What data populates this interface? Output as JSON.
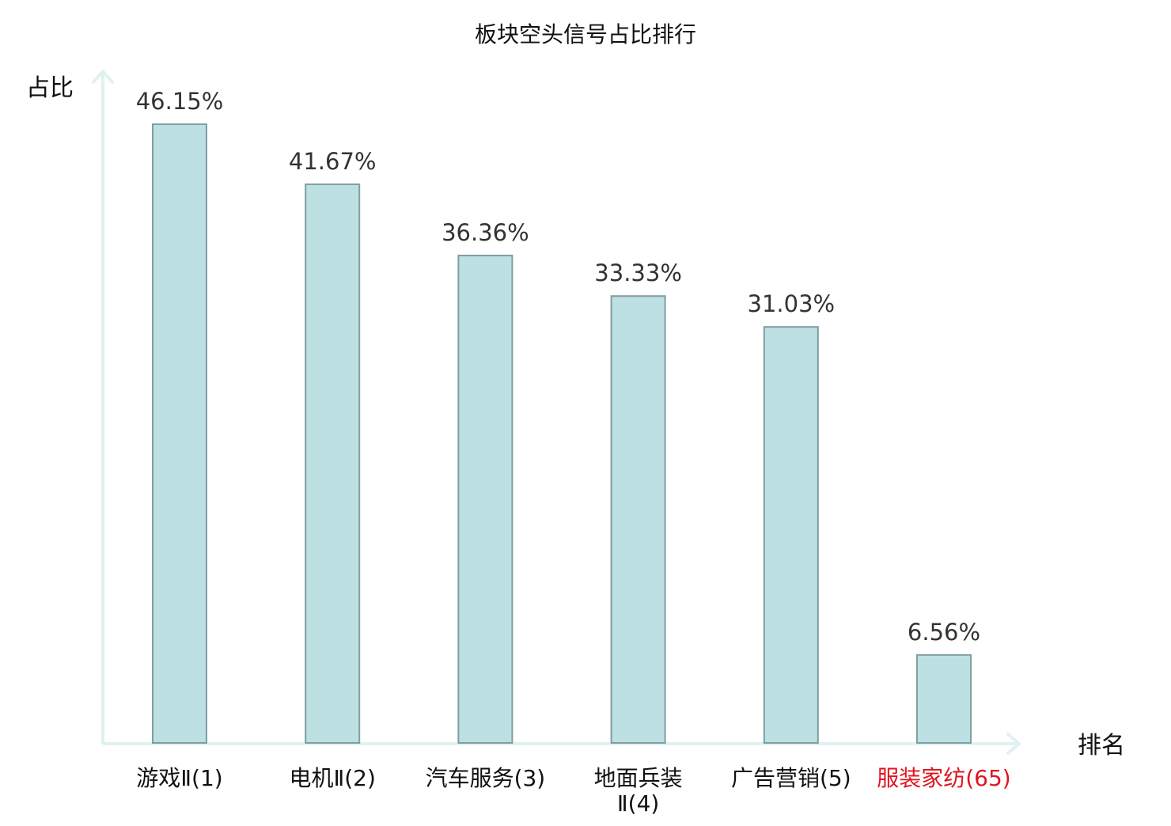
{
  "chart_data": {
    "type": "bar",
    "title": "板块空头信号占比排行",
    "ylabel": "占比",
    "xlabel": "排名",
    "categories": [
      [
        "游戏Ⅱ(1)"
      ],
      [
        "电机Ⅱ(2)"
      ],
      [
        "汽车服务(3)"
      ],
      [
        "地面兵装",
        "Ⅱ(4)"
      ],
      [
        "广告营销(5)"
      ],
      [
        "服装家纺(65)"
      ]
    ],
    "values": [
      46.15,
      41.67,
      36.36,
      33.33,
      31.03,
      6.56
    ],
    "value_labels": [
      "46.15%",
      "41.67%",
      "36.36%",
      "33.33%",
      "31.03%",
      "6.56%"
    ],
    "highlight_index": 5,
    "ylim": [
      0,
      46.15
    ],
    "grid": false,
    "legend": "none",
    "colors": {
      "bar_fill": "#bde0e2",
      "bar_stroke": "#7f9ea2",
      "axis": "#dff2ef",
      "highlight_text": "#e0141e"
    }
  }
}
